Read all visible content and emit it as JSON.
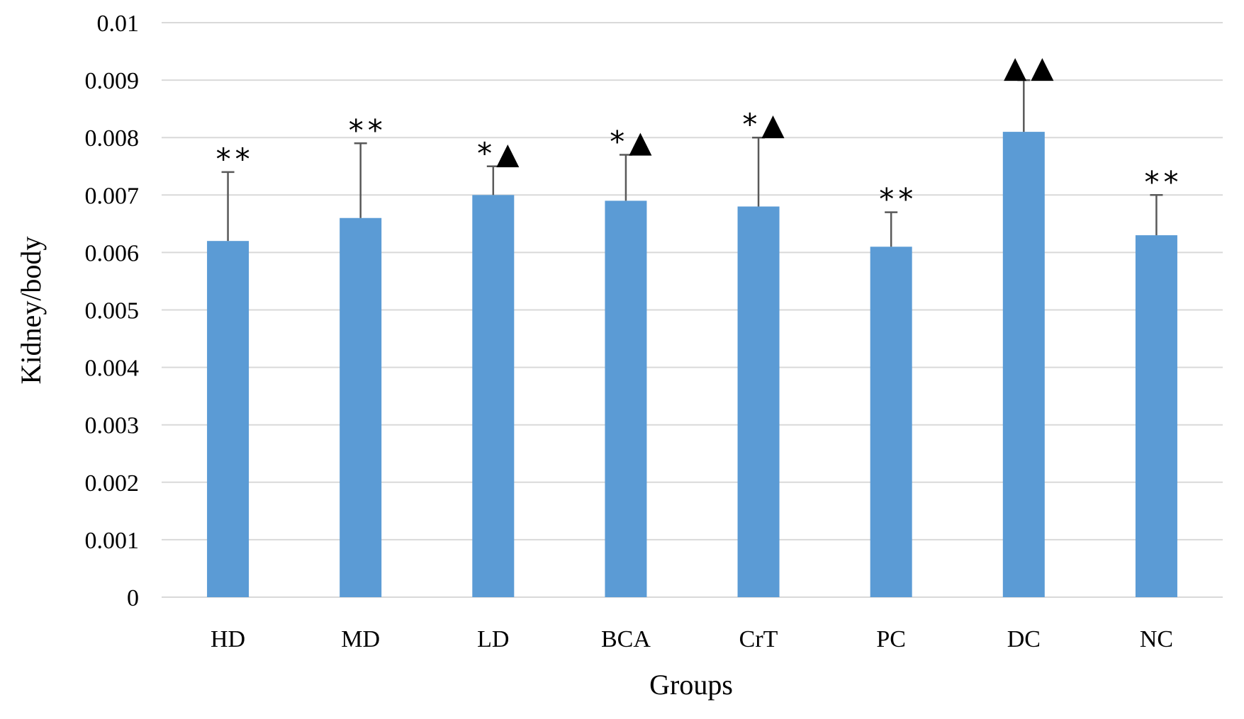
{
  "chart_data": {
    "type": "bar",
    "title": "",
    "xlabel": "Groups",
    "ylabel": "Kidney/body",
    "ylim": [
      0,
      0.01
    ],
    "yticks": [
      "0",
      "0.001",
      "0.002",
      "0.003",
      "0.004",
      "0.005",
      "0.006",
      "0.007",
      "0.008",
      "0.009",
      "0.01"
    ],
    "grid": true,
    "categories": [
      "HD",
      "MD",
      "LD",
      "BCA",
      "CrT",
      "PC",
      "DC",
      "NC"
    ],
    "values": [
      0.0062,
      0.0066,
      0.007,
      0.0069,
      0.0068,
      0.0061,
      0.0081,
      0.0063
    ],
    "error_upper": [
      0.0074,
      0.0079,
      0.0075,
      0.0077,
      0.008,
      0.0067,
      0.009,
      0.007
    ],
    "significance": [
      "**",
      "**",
      "*▲",
      "*▲",
      "*▲",
      "**",
      "▲▲",
      "**"
    ],
    "bar_color": "#5b9bd5",
    "grid_color": "#d9d9d9",
    "error_color": "#595959"
  }
}
